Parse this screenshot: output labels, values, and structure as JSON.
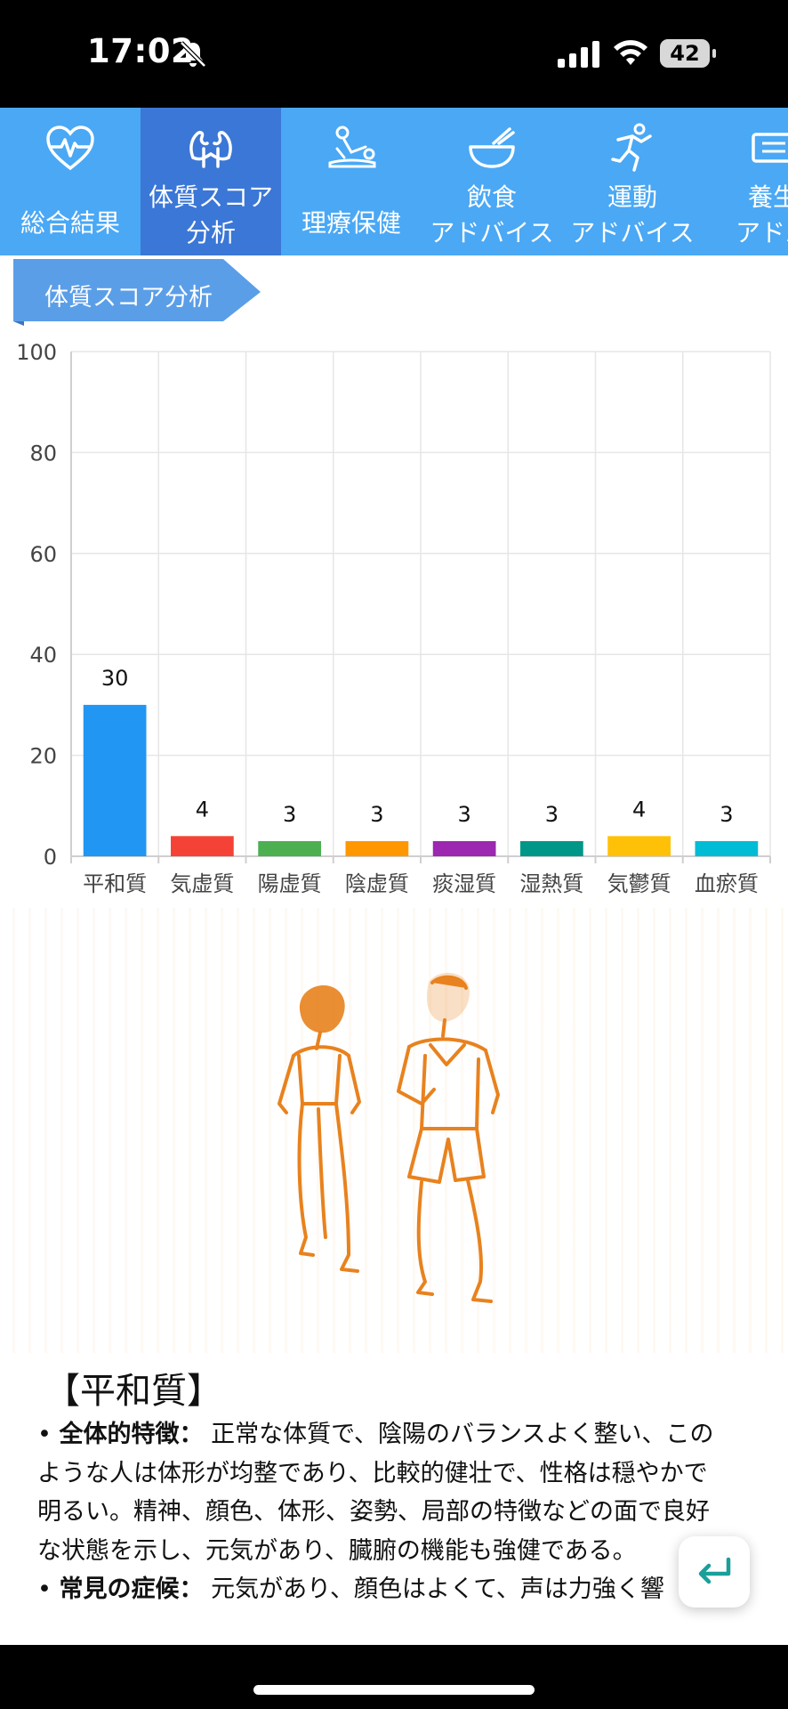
{
  "status_bar": {
    "time": "17:02",
    "battery": "42"
  },
  "tabs": [
    {
      "label_lines": [
        "総合結果"
      ],
      "icon": "heart-pulse-icon"
    },
    {
      "label_lines": [
        "体質スコア",
        "分析"
      ],
      "icon": "muscle-icon",
      "active": true
    },
    {
      "label_lines": [
        "理療保健"
      ],
      "icon": "massage-icon"
    },
    {
      "label_lines": [
        "飲食",
        "アドバイス"
      ],
      "icon": "bowl-icon"
    },
    {
      "label_lines": [
        "運動",
        "アドバイス"
      ],
      "icon": "running-icon"
    },
    {
      "label_lines": [
        "養生",
        "アドバ"
      ],
      "icon": "book-icon"
    }
  ],
  "section": {
    "title": "体質スコア分析"
  },
  "chart_data": {
    "type": "bar",
    "categories": [
      "平和質",
      "気虚質",
      "陽虚質",
      "陰虚質",
      "痰湿質",
      "湿熱質",
      "気鬱質",
      "血瘀質"
    ],
    "values": [
      30,
      4,
      3,
      3,
      3,
      3,
      4,
      3
    ],
    "colors": [
      "#2196f3",
      "#f44336",
      "#4caf50",
      "#ff9800",
      "#9c27b0",
      "#009688",
      "#ffc107",
      "#00bcd4"
    ],
    "ylim": [
      0,
      100
    ],
    "yticks": [
      0,
      20,
      40,
      60,
      80,
      100
    ],
    "grid": true,
    "data_labels": true
  },
  "illustration": {
    "icon": "jogging-couple-illustration",
    "accent_color": "#e8821e"
  },
  "result": {
    "title": "【平和質】",
    "sections": [
      {
        "term": "全体的特徴：",
        "text": "正常な体質で、陰陽のバランスよく整い、このような人は体形が均整であり、比較的健壮で、性格は穏やかで明るい。精神、顔色、体形、姿勢、局部の特徴などの面で良好な状態を示し、元気があり、臓腑の機能も強健である。"
      },
      {
        "term": "常見の症候：",
        "text": "元気があり、顔色はよくて、声は力強く響"
      }
    ]
  },
  "fab": {
    "icon": "return-arrow-icon",
    "color": "#1a9f9b"
  }
}
